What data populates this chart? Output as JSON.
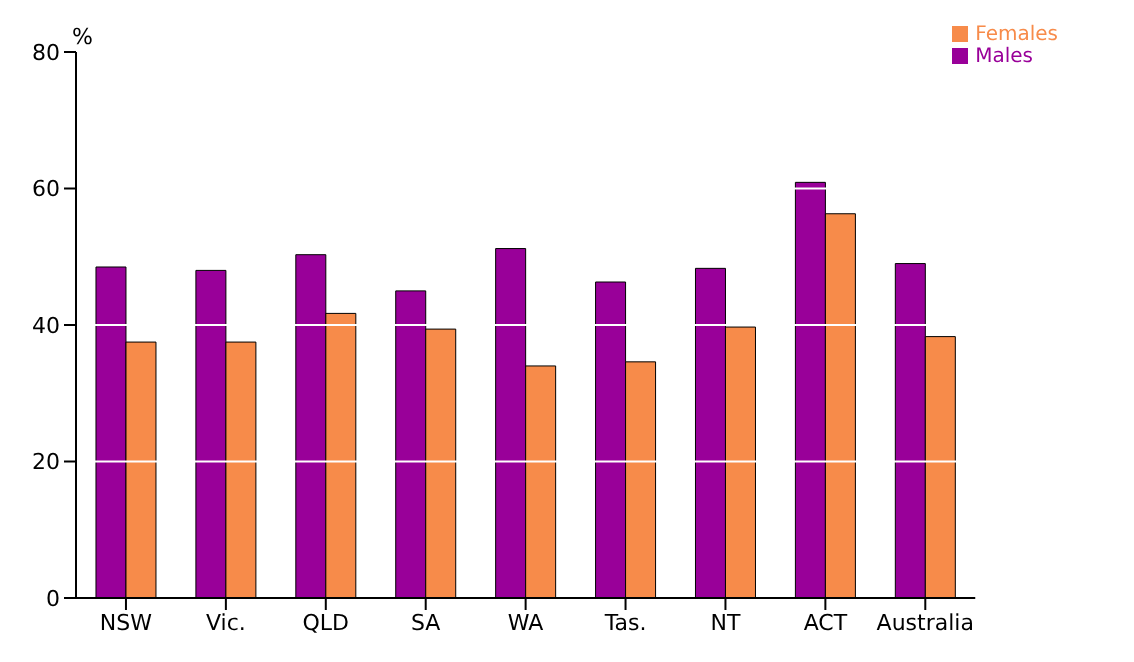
{
  "chart_data": {
    "type": "bar",
    "ylabel": "%",
    "categories": [
      "NSW",
      "Vic.",
      "QLD",
      "SA",
      "WA",
      "Tas.",
      "NT",
      "ACT",
      "Australia"
    ],
    "series": [
      {
        "name": "Males",
        "color": "#990099",
        "values": [
          48.5,
          48,
          50.3,
          45,
          51.2,
          46.3,
          48.3,
          60.9,
          49
        ]
      },
      {
        "name": "Females",
        "color": "#f78b4a",
        "values": [
          37.5,
          37.5,
          41.7,
          39.4,
          34,
          34.6,
          39.7,
          56.3,
          38.3
        ]
      }
    ],
    "ylim": [
      0,
      80
    ],
    "yticks": [
      0,
      20,
      40,
      60,
      80
    ],
    "grid": "y",
    "legend": "top right"
  }
}
